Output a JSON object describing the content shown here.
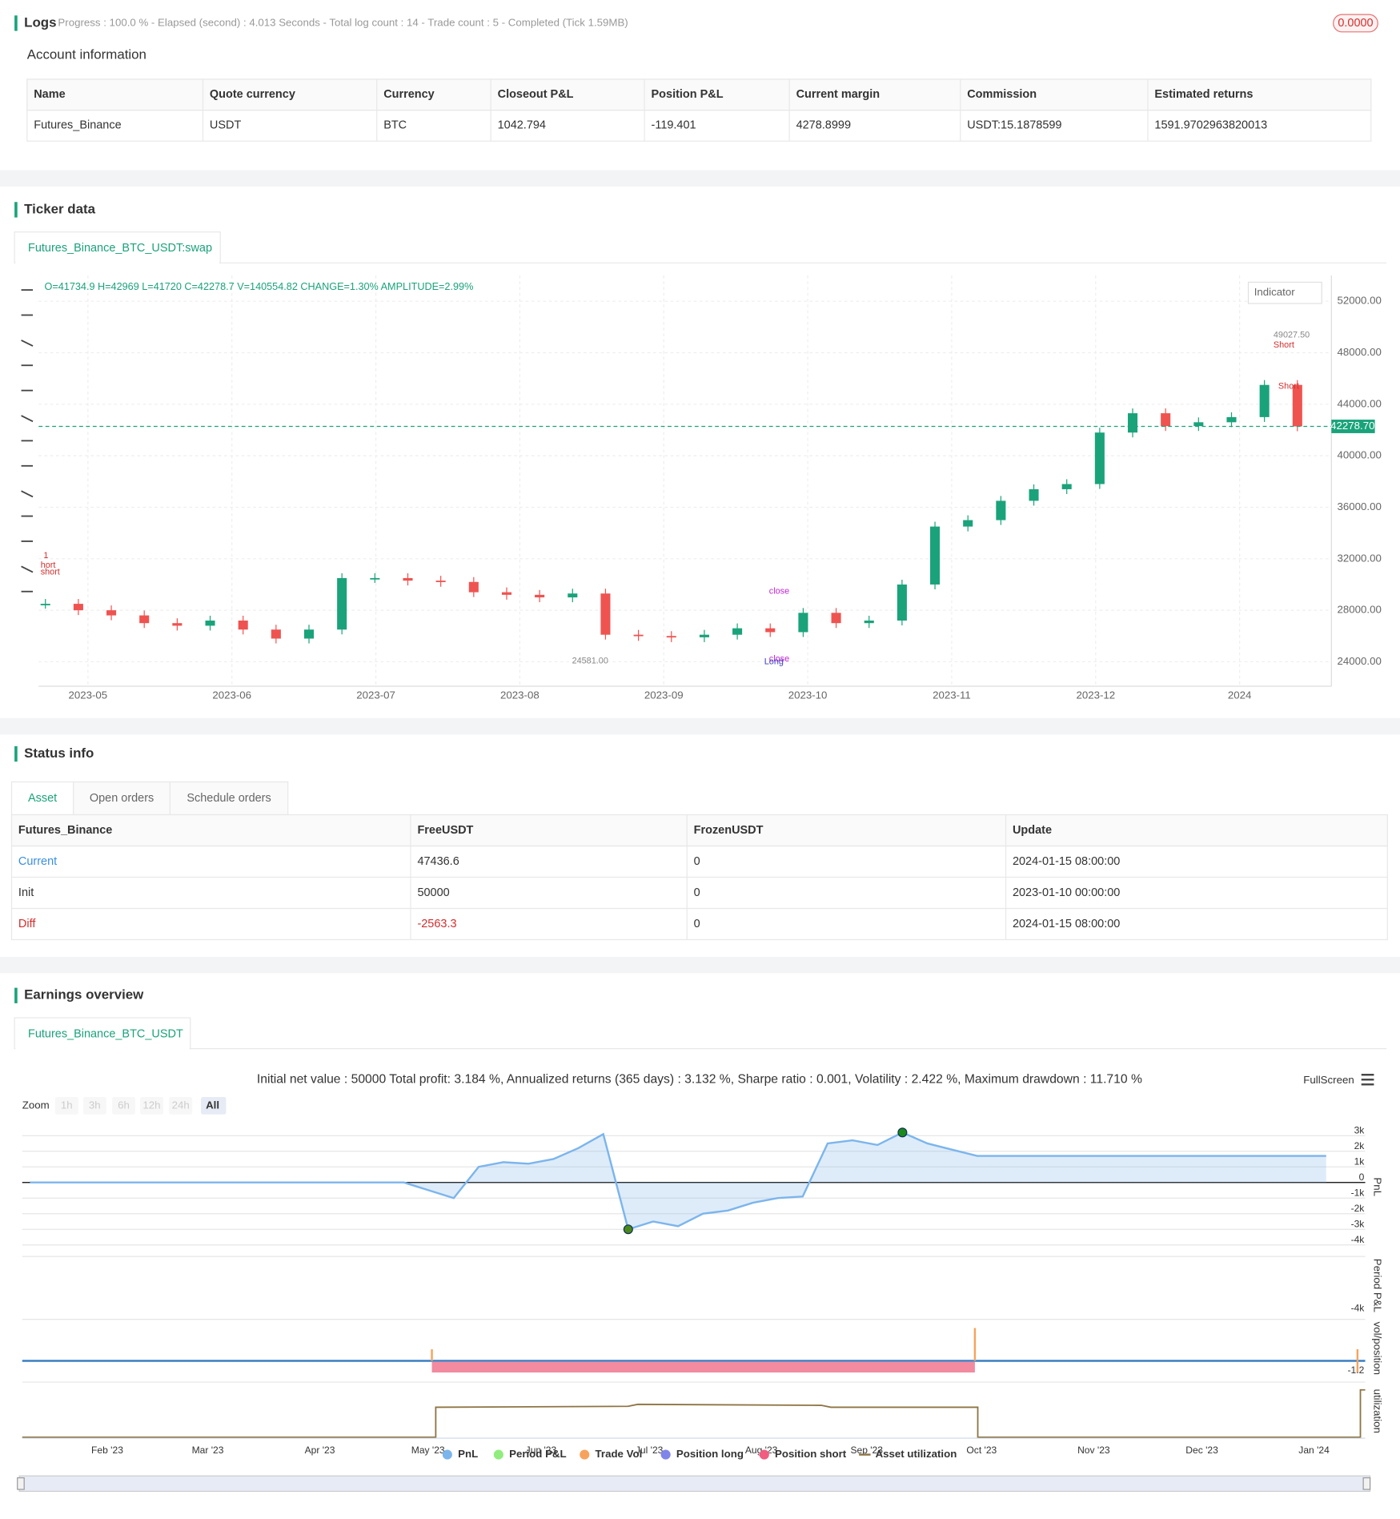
{
  "logs": {
    "title": "Logs",
    "progress": "Progress : 100.0 % - Elapsed (second) : 4.013  Seconds - Total log count : 14 - Trade count : 5 - Completed (Tick 1.59MB)",
    "badge": "0.0000"
  },
  "account": {
    "title": "Account information",
    "columns": [
      "Name",
      "Quote currency",
      "Currency",
      "Closeout P&L",
      "Position P&L",
      "Current margin",
      "Commission",
      "Estimated returns"
    ],
    "rows": [
      [
        "Futures_Binance",
        "USDT",
        "BTC",
        "1042.794",
        "-119.401",
        "4278.8999",
        "USDT:15.1878599",
        "1591.9702963820013"
      ]
    ]
  },
  "ticker": {
    "title": "Ticker data",
    "tab": "Futures_Binance_BTC_USDT:swap",
    "indicator": "Indicator"
  },
  "status": {
    "title": "Status info",
    "tabs": [
      "Asset",
      "Open orders",
      "Schedule orders"
    ],
    "columns": [
      "Futures_Binance",
      "FreeUSDT",
      "FrozenUSDT",
      "Update"
    ],
    "rows": [
      [
        "Current",
        "47436.6",
        "0",
        "2024-01-15 08:00:00"
      ],
      [
        "Init",
        "50000",
        "0",
        "2023-01-10 00:00:00"
      ],
      [
        "Diff",
        "-2563.3",
        "0",
        "2024-01-15 08:00:00"
      ]
    ]
  },
  "earnings": {
    "title": "Earnings overview",
    "tab": "Futures_Binance_BTC_USDT",
    "fullscreen": "FullScreen",
    "zoom": "Zoom",
    "zoom_buttons": [
      "1h",
      "3h",
      "6h",
      "12h",
      "24h",
      "All"
    ],
    "panel_labels": [
      "Period P&L",
      "vol/position",
      "utilization"
    ],
    "panel_ticks": [
      "-4k",
      "-1.2"
    ]
  },
  "chart_data": [
    {
      "type": "candlestick",
      "info": "O=41734.9 H=42969 L=41720 C=42278.7 V=140554.82 CHANGE=1.30% AMPLITUDE=2.99%",
      "closes": [
        28500,
        28000,
        27600,
        27000,
        26800,
        27200,
        26500,
        25800,
        26500,
        30500,
        30500,
        30300,
        30200,
        29400,
        29200,
        29000,
        29300,
        26100,
        26000,
        25900,
        26100,
        26600,
        26300,
        27800,
        27000,
        27200,
        30000,
        34500,
        35000,
        36500,
        37400,
        37800,
        41800,
        43300,
        42300,
        42600,
        43000,
        45500,
        42278.7
      ],
      "up_color": "#1aa37a",
      "down_color": "#ef5350",
      "ylim": [
        22100,
        54000
      ],
      "yticks": [
        {
          "value": 24000,
          "label": "24000.00"
        },
        {
          "value": 28000,
          "label": "28000.00"
        },
        {
          "value": 32000,
          "label": "32000.00"
        },
        {
          "value": 36000,
          "label": "36000.00"
        },
        {
          "value": 40000,
          "label": "40000.00"
        },
        {
          "value": 44000,
          "label": "44000.00"
        },
        {
          "value": 48000,
          "label": "48000.00"
        },
        {
          "value": 52000,
          "label": "52000.00"
        }
      ],
      "x_labels": [
        "2023-05",
        "2023-06",
        "2023-07",
        "2023-08",
        "2023-09",
        "2023-10",
        "2023-11",
        "2023-12",
        "2024"
      ],
      "last_price": {
        "value": 42278.7,
        "label": "42278.70"
      },
      "annotations": [
        "1",
        "hort",
        "short",
        "close",
        "close",
        "Long",
        "Short",
        "Short",
        "49027.50",
        "24581.00"
      ],
      "grid": true
    },
    {
      "type": "area",
      "subtitle": "Initial net value : 50000 Total profit: 3.184 %, Annualized returns (365 days) : 3.132 %, Sharpe ratio : 0.001, Volatility : 2.422 %, Maximum drawdown : 11.710 %",
      "ylabel": "PnL",
      "values": [
        0,
        0,
        0,
        0,
        0,
        0,
        0,
        0,
        0,
        0,
        0,
        0,
        0,
        0,
        0,
        0,
        -500,
        -1000,
        1000,
        1300,
        1200,
        1500,
        2200,
        3100,
        -3000,
        -2500,
        -2800,
        -2000,
        -1800,
        -1300,
        -1000,
        -900,
        2500,
        2700,
        2400,
        3200,
        2500,
        2100,
        1700,
        1700,
        1700,
        1700,
        1700,
        1700,
        1700,
        1700,
        1700,
        1700,
        1700,
        1700,
        1700,
        1700,
        1700
      ],
      "color": "#7cb5ec",
      "ylim": [
        -4430,
        3740
      ],
      "yticks": [
        {
          "value": 3000,
          "label": "3k"
        },
        {
          "value": 2000,
          "label": "2k"
        },
        {
          "value": 1000,
          "label": "1k"
        },
        0,
        {
          "value": -1000,
          "label": "-1k"
        },
        {
          "value": -2000,
          "label": "-2k"
        },
        {
          "value": -3000,
          "label": "-3k"
        },
        {
          "value": -4000,
          "label": "-4k"
        }
      ],
      "x_labels": [
        "Feb '23",
        "Mar '23",
        "Apr '23",
        "May '23",
        "Jun '23",
        "Jul '23",
        "Aug '23",
        "Sep '23",
        "Oct '23",
        "Nov '23",
        "Dec '23",
        "Jan '24"
      ],
      "series": [
        {
          "name": "PnL",
          "color": "#7cb5ec"
        },
        {
          "name": "Period P&L",
          "color": "#90ed7d"
        },
        {
          "name": "Trade Vol",
          "color": "#f7a35c"
        },
        {
          "name": "Position long",
          "color": "#8085e9"
        },
        {
          "name": "Position short",
          "color": "#f15c80"
        },
        {
          "name": "Asset utilization",
          "color": "#8d7443"
        }
      ],
      "grid": true
    }
  ]
}
